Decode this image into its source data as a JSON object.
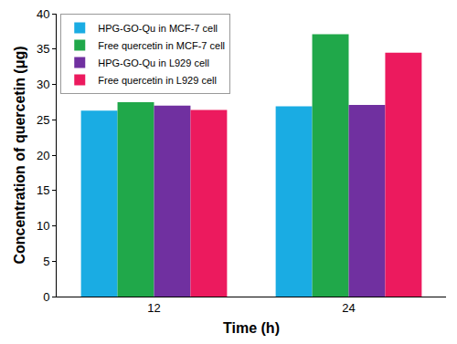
{
  "chart_data": {
    "type": "bar",
    "x_label": "Time (h)",
    "y_label": "Concentration of quercetin (μg)",
    "categories": [
      "12",
      "24"
    ],
    "series": [
      {
        "name": "HPG-GO-Qu in MCF-7 cell",
        "color": "#1aace3",
        "values": [
          26.3,
          26.9
        ]
      },
      {
        "name": "Free quercetin in MCF-7 cell",
        "color": "#20a84a",
        "values": [
          27.5,
          37.1
        ]
      },
      {
        "name": "HPG-GO-Qu in L929 cell",
        "color": "#7030a0",
        "values": [
          27.0,
          27.1
        ]
      },
      {
        "name": "Free quercetin in L929 cell",
        "color": "#ec1a5e",
        "values": [
          26.4,
          34.5
        ]
      }
    ],
    "ylim": [
      0,
      40
    ],
    "yticks": [
      0,
      5,
      10,
      15,
      20,
      25,
      30,
      35,
      40
    ],
    "grid": false,
    "legend": "top-left"
  }
}
